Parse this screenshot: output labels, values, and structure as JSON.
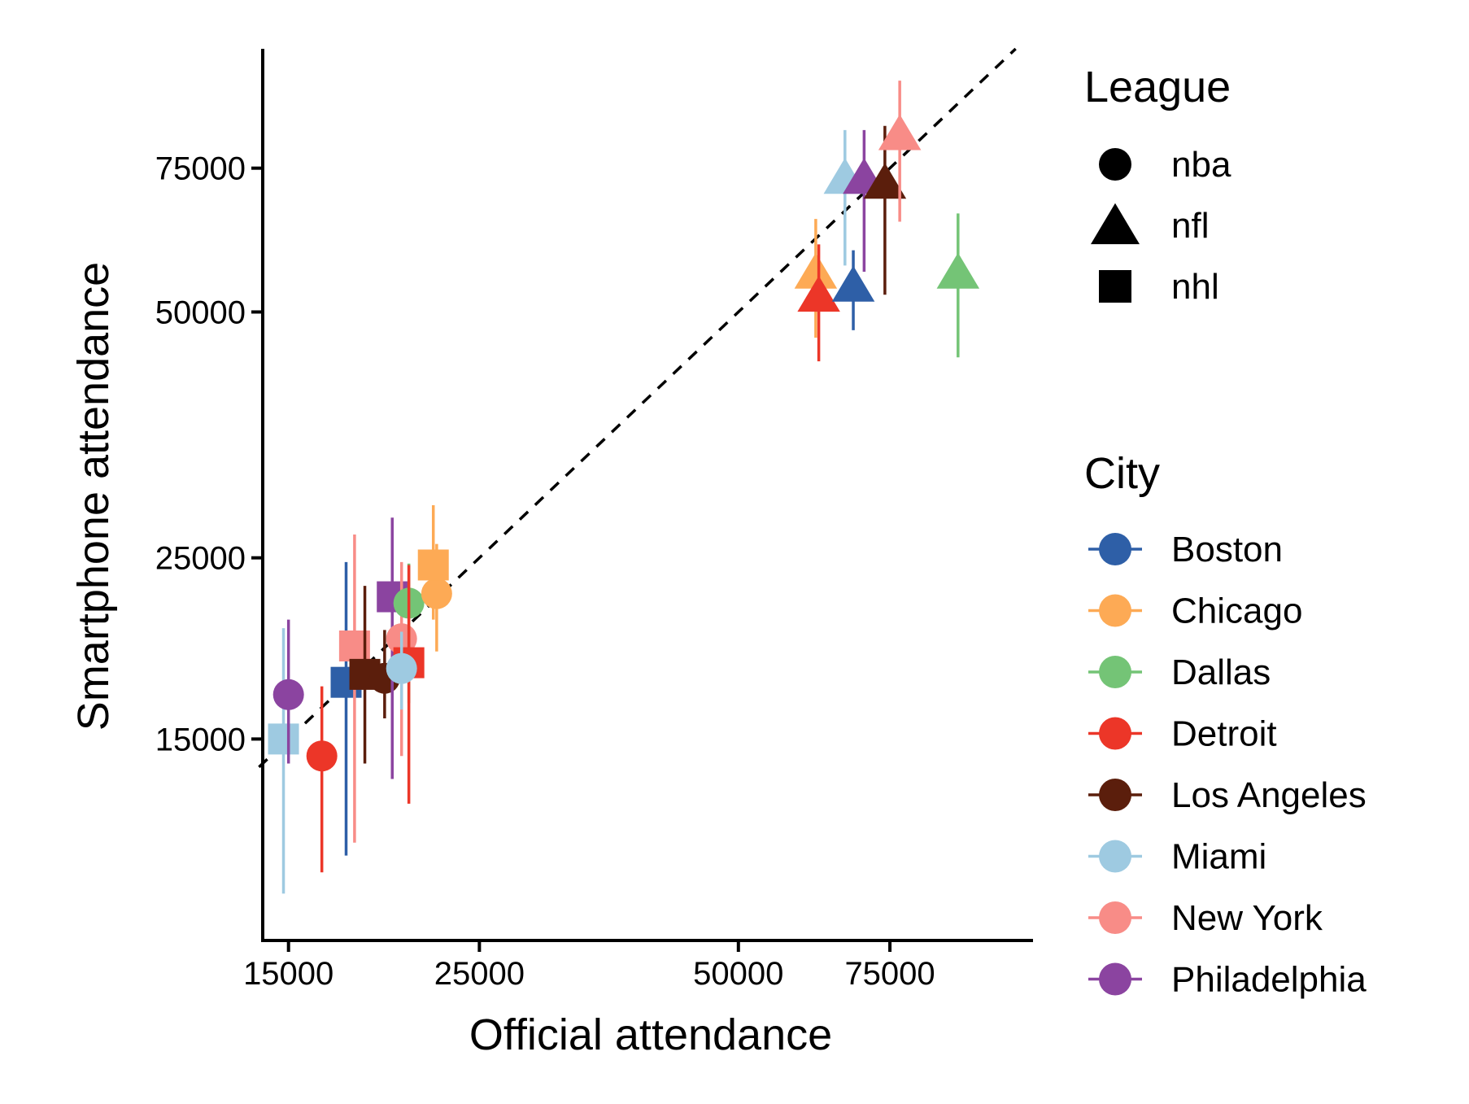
{
  "chart_data": {
    "type": "scatter",
    "xlabel": "Official attendance",
    "ylabel": "Smartphone attendance",
    "x_scale": "log",
    "y_scale": "log",
    "xlim": [
      14000,
      110000
    ],
    "ylim": [
      8500,
      105000
    ],
    "x_ticks": [
      15000,
      25000,
      50000,
      75000
    ],
    "y_ticks": [
      15000,
      25000,
      50000,
      75000
    ],
    "x_tick_labels": [
      "15000",
      "25000",
      "50000",
      "75000"
    ],
    "y_tick_labels": [
      "15000",
      "25000",
      "50000",
      "75000"
    ],
    "reference_line": {
      "style": "dashed",
      "color": "#000000",
      "relation": "y = x"
    },
    "legend_league": {
      "title": "League",
      "entries": [
        {
          "label": "nba",
          "shape": "circle"
        },
        {
          "label": "nfl",
          "shape": "triangle"
        },
        {
          "label": "nhl",
          "shape": "square"
        }
      ]
    },
    "legend_city": {
      "title": "City",
      "entries": [
        {
          "label": "Boston",
          "color": "#2e5fa7"
        },
        {
          "label": "Chicago",
          "color": "#fdaa55"
        },
        {
          "label": "Dallas",
          "color": "#74c476"
        },
        {
          "label": "Detroit",
          "color": "#ec3628"
        },
        {
          "label": "Los Angeles",
          "color": "#5b1e0c"
        },
        {
          "label": "Miami",
          "color": "#9ecae1"
        },
        {
          "label": "New York",
          "color": "#f88c87"
        },
        {
          "label": "Philadelphia",
          "color": "#8b44a0"
        }
      ]
    },
    "points": [
      {
        "city": "Miami",
        "league": "nhl",
        "x": 14800,
        "y": 15000,
        "ylo": 9700,
        "yhi": 20500
      },
      {
        "city": "Philadelphia",
        "league": "nba",
        "x": 15000,
        "y": 17000,
        "ylo": 14000,
        "yhi": 21000
      },
      {
        "city": "Detroit",
        "league": "nba",
        "x": 16400,
        "y": 14300,
        "ylo": 10300,
        "yhi": 17400
      },
      {
        "city": "Boston",
        "league": "nhl",
        "x": 17500,
        "y": 17600,
        "ylo": 10800,
        "yhi": 24700
      },
      {
        "city": "New York",
        "league": "nhl",
        "x": 17900,
        "y": 19500,
        "ylo": 11200,
        "yhi": 26700
      },
      {
        "city": "Los Angeles",
        "league": "nhl",
        "x": 18400,
        "y": 18000,
        "ylo": 14000,
        "yhi": 23100
      },
      {
        "city": "Los Angeles",
        "league": "nba",
        "x": 19400,
        "y": 17800,
        "ylo": 15900,
        "yhi": 20400
      },
      {
        "city": "Philadelphia",
        "league": "nhl",
        "x": 19800,
        "y": 22400,
        "ylo": 13400,
        "yhi": 28000
      },
      {
        "city": "New York",
        "league": "nba",
        "x": 20300,
        "y": 19900,
        "ylo": 14300,
        "yhi": 24700
      },
      {
        "city": "Dallas",
        "league": "nba",
        "x": 20700,
        "y": 22000,
        "ylo": 16600,
        "yhi": 24600
      },
      {
        "city": "Detroit",
        "league": "nhl",
        "x": 20700,
        "y": 18600,
        "ylo": 12500,
        "yhi": 24500
      },
      {
        "city": "Miami",
        "league": "nba",
        "x": 20300,
        "y": 18300,
        "ylo": 16300,
        "yhi": 20300
      },
      {
        "city": "Chicago",
        "league": "nba",
        "x": 22300,
        "y": 22600,
        "ylo": 19200,
        "yhi": 26000
      },
      {
        "city": "Chicago",
        "league": "nhl",
        "x": 22100,
        "y": 24500,
        "ylo": 21000,
        "yhi": 29000
      },
      {
        "city": "Chicago",
        "league": "nfl",
        "x": 61500,
        "y": 55500,
        "ylo": 46500,
        "yhi": 65000
      },
      {
        "city": "Detroit",
        "league": "nfl",
        "x": 62000,
        "y": 52000,
        "ylo": 43500,
        "yhi": 60500
      },
      {
        "city": "Miami",
        "league": "nfl",
        "x": 66500,
        "y": 72500,
        "ylo": 57000,
        "yhi": 83500
      },
      {
        "city": "Boston",
        "league": "nfl",
        "x": 68000,
        "y": 53500,
        "ylo": 47500,
        "yhi": 59500
      },
      {
        "city": "Philadelphia",
        "league": "nfl",
        "x": 70000,
        "y": 72500,
        "ylo": 56000,
        "yhi": 83500
      },
      {
        "city": "Los Angeles",
        "league": "nfl",
        "x": 74000,
        "y": 71500,
        "ylo": 52500,
        "yhi": 84500
      },
      {
        "city": "New York",
        "league": "nfl",
        "x": 77000,
        "y": 82000,
        "ylo": 64500,
        "yhi": 96000
      },
      {
        "city": "Dallas",
        "league": "nfl",
        "x": 90000,
        "y": 55500,
        "ylo": 44000,
        "yhi": 66000
      }
    ]
  }
}
